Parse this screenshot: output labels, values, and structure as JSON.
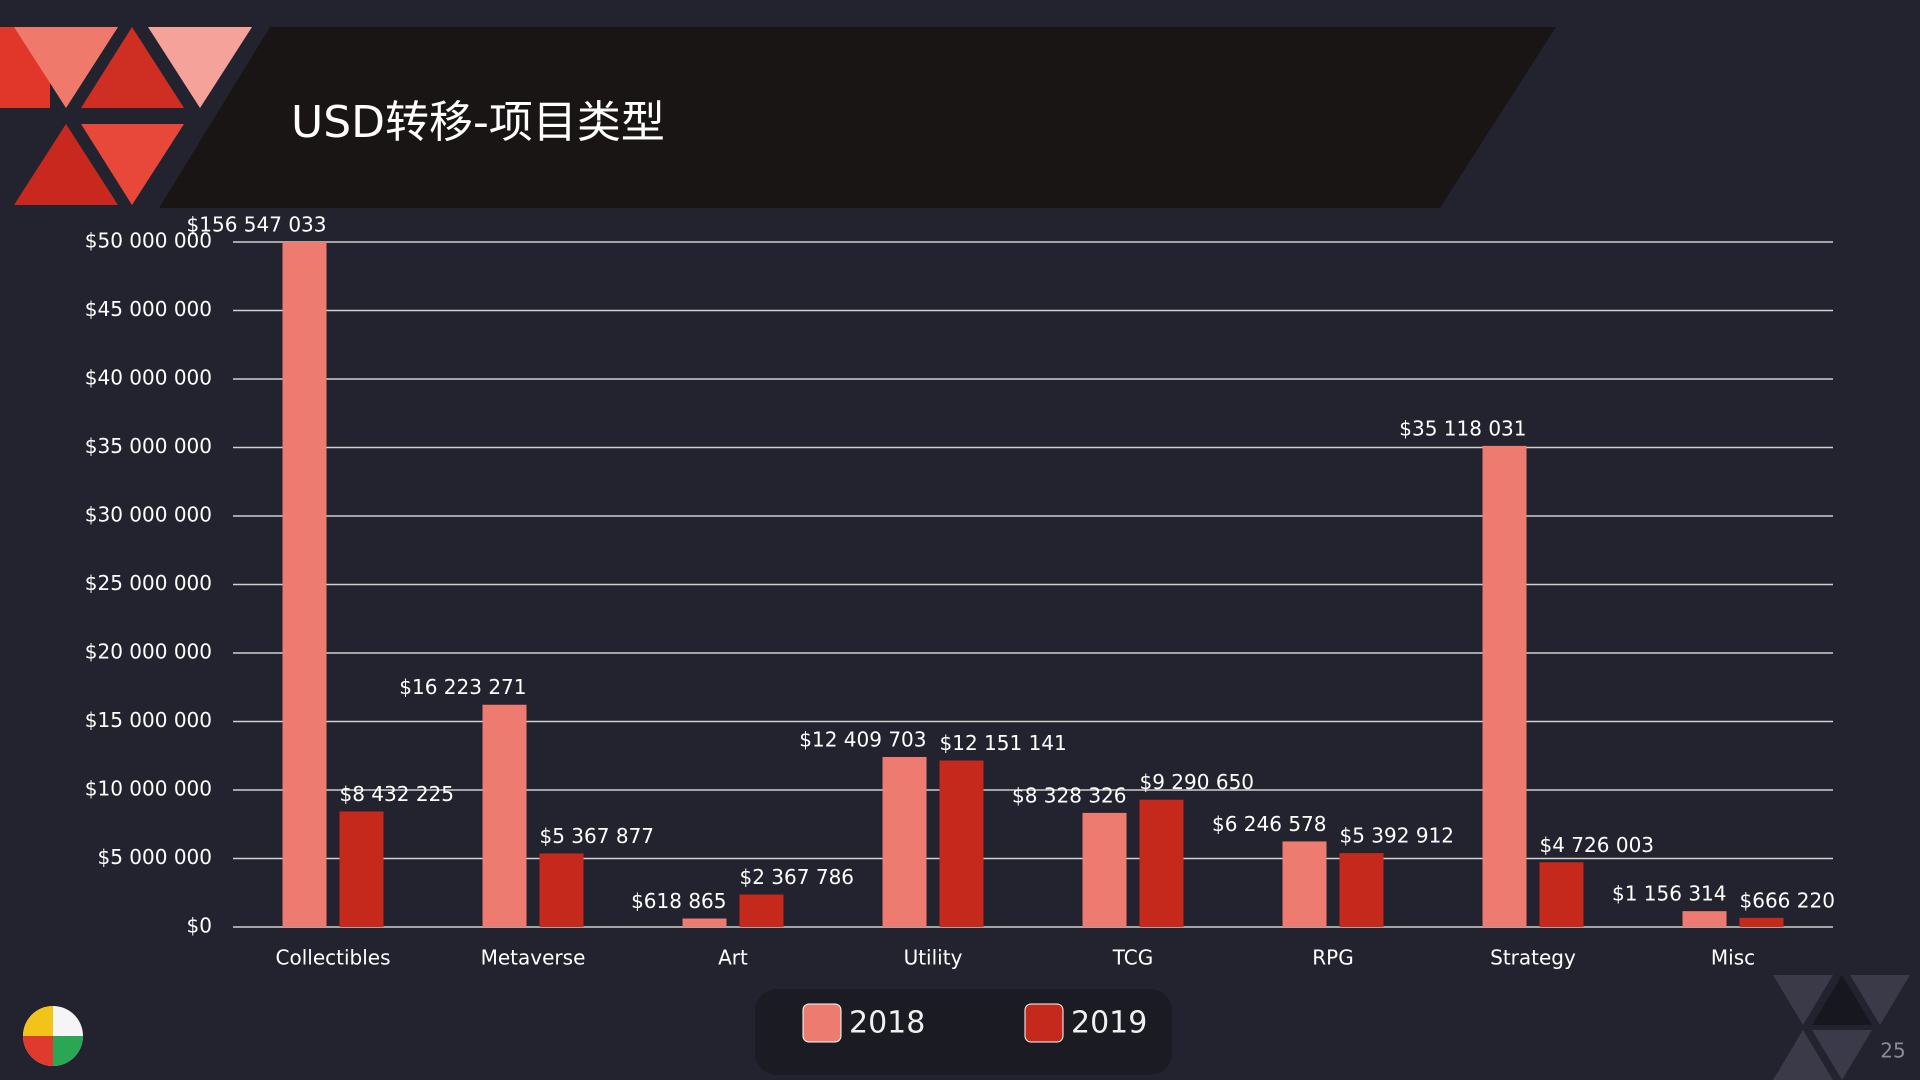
{
  "slide": {
    "page_number": "25"
  },
  "chart_data": {
    "type": "bar",
    "title": "USD转移-项目类型",
    "categories": [
      "Collectibles",
      "Metaverse",
      "Art",
      "Utility",
      "TCG",
      "RPG",
      "Strategy",
      "Misc"
    ],
    "series": [
      {
        "name": "2018",
        "color": "#ee7b6f",
        "values": [
          156547033,
          16223271,
          618865,
          12409703,
          8328326,
          6246578,
          35118031,
          1156314
        ],
        "value_labels": [
          "$156 547 033",
          "$16 223 271",
          "$618 865",
          "$12 409 703",
          "$8 328 326",
          "$6 246 578",
          "$35 118 031",
          "$1 156 314"
        ]
      },
      {
        "name": "2019",
        "color": "#c4291c",
        "values": [
          8432225,
          5367877,
          2367786,
          12151141,
          9290650,
          5392912,
          4726003,
          666220
        ],
        "value_labels": [
          "$8 432 225",
          "$5 367 877",
          "$2 367 786",
          "$12 151 141",
          "$9 290 650",
          "$5 392 912",
          "$4 726 003",
          "$666 220"
        ]
      }
    ],
    "ylim": [
      0,
      50000000
    ],
    "yticks": [
      {
        "value": 0,
        "label": "$0"
      },
      {
        "value": 5000000,
        "label": "$5 000 000"
      },
      {
        "value": 10000000,
        "label": "$10 000 000"
      },
      {
        "value": 15000000,
        "label": "$15 000 000"
      },
      {
        "value": 20000000,
        "label": "$20 000 000"
      },
      {
        "value": 25000000,
        "label": "$25 000 000"
      },
      {
        "value": 30000000,
        "label": "$30 000 000"
      },
      {
        "value": 35000000,
        "label": "$35 000 000"
      },
      {
        "value": 40000000,
        "label": "$40 000 000"
      },
      {
        "value": 45000000,
        "label": "$45 000 000"
      },
      {
        "value": 50000000,
        "label": "$50 000 000"
      }
    ],
    "grid": true,
    "legend": "bottom"
  }
}
